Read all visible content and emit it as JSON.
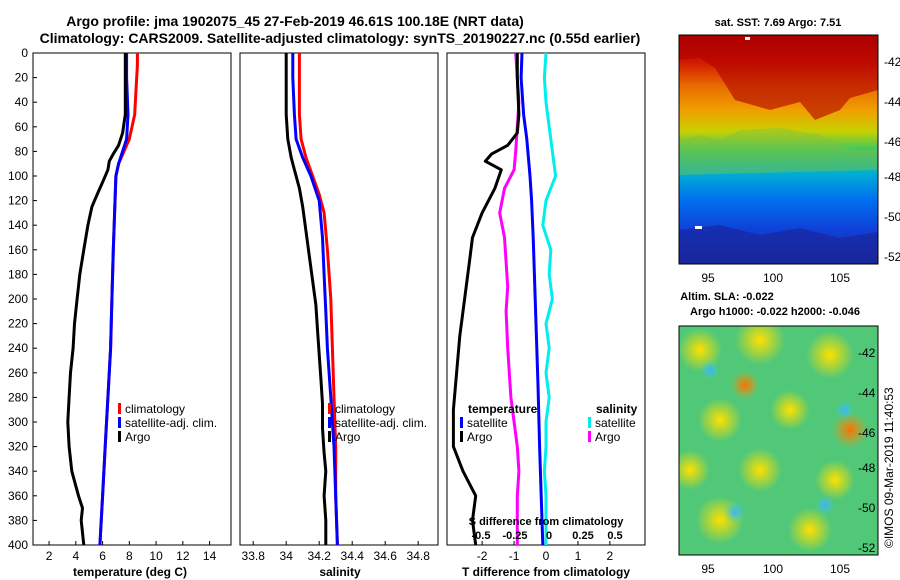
{
  "header": {
    "line1": "Argo profile: jma 1902075_45 27-Feb-2019 46.61S 100.18E (NRT data)",
    "line2": "Climatology: CARS2009. Satellite-adjusted climatology: synTS_20190227.nc (0.55d earlier)"
  },
  "colors": {
    "clim": "#ff0000",
    "sat": "#0000ff",
    "argo": "#000000",
    "sat_sal": "#00eeee",
    "argo_sal": "#ff00ff"
  },
  "chart_data": [
    {
      "type": "line",
      "id": "temperature",
      "xlabel": "temperature (deg C)",
      "xlim": [
        0.8,
        15.6
      ],
      "xticks": [
        2,
        4,
        6,
        8,
        10,
        12,
        14
      ],
      "ylim": [
        0,
        400
      ],
      "yticks": [
        0,
        20,
        40,
        60,
        80,
        100,
        120,
        140,
        160,
        180,
        200,
        220,
        240,
        260,
        280,
        300,
        320,
        340,
        360,
        380,
        400
      ],
      "legend": [
        "climatology",
        "satellite-adj. clim.",
        "Argo"
      ],
      "series": [
        {
          "name": "climatology",
          "color": "clim",
          "points": [
            [
              8.6,
              0
            ],
            [
              8.6,
              10
            ],
            [
              8.5,
              30
            ],
            [
              8.4,
              50
            ],
            [
              8.0,
              70
            ],
            [
              7.6,
              80
            ],
            [
              7.2,
              90
            ],
            [
              7.0,
              100
            ],
            [
              6.9,
              130
            ],
            [
              6.8,
              160
            ],
            [
              6.7,
              200
            ],
            [
              6.6,
              240
            ],
            [
              6.4,
              280
            ],
            [
              6.2,
              320
            ],
            [
              6.0,
              360
            ],
            [
              5.8,
              400
            ]
          ]
        },
        {
          "name": "satellite-adj. clim.",
          "color": "sat",
          "points": [
            [
              7.8,
              0
            ],
            [
              7.8,
              20
            ],
            [
              7.9,
              50
            ],
            [
              7.8,
              70
            ],
            [
              7.5,
              80
            ],
            [
              7.2,
              90
            ],
            [
              7.0,
              100
            ],
            [
              6.9,
              130
            ],
            [
              6.8,
              160
            ],
            [
              6.7,
              200
            ],
            [
              6.6,
              240
            ],
            [
              6.4,
              280
            ],
            [
              6.2,
              320
            ],
            [
              6.0,
              360
            ],
            [
              5.8,
              400
            ]
          ]
        },
        {
          "name": "Argo",
          "color": "argo",
          "points": [
            [
              7.7,
              0
            ],
            [
              7.7,
              20
            ],
            [
              7.7,
              50
            ],
            [
              7.5,
              65
            ],
            [
              7.2,
              75
            ],
            [
              6.8,
              82
            ],
            [
              6.5,
              88
            ],
            [
              6.4,
              95
            ],
            [
              6.0,
              105
            ],
            [
              5.6,
              115
            ],
            [
              5.2,
              125
            ],
            [
              4.9,
              140
            ],
            [
              4.6,
              160
            ],
            [
              4.3,
              180
            ],
            [
              4.1,
              200
            ],
            [
              3.9,
              220
            ],
            [
              3.8,
              240
            ],
            [
              3.6,
              260
            ],
            [
              3.5,
              280
            ],
            [
              3.4,
              300
            ],
            [
              3.5,
              320
            ],
            [
              3.7,
              340
            ],
            [
              4.2,
              360
            ],
            [
              4.5,
              370
            ],
            [
              4.4,
              380
            ],
            [
              4.5,
              390
            ],
            [
              4.6,
              400
            ]
          ]
        }
      ]
    },
    {
      "type": "line",
      "id": "salinity",
      "xlabel": "salinity",
      "xlim": [
        33.72,
        34.92
      ],
      "xticks": [
        "33.8",
        "34",
        "34.2",
        "34.4",
        "34.6",
        "34.8"
      ],
      "ylim": [
        0,
        400
      ],
      "legend": [
        "climatology",
        "satellite-adj. clim.",
        "Argo"
      ],
      "series": [
        {
          "name": "climatology",
          "color": "clim",
          "points": [
            [
              34.08,
              0
            ],
            [
              34.08,
              20
            ],
            [
              34.08,
              50
            ],
            [
              34.09,
              70
            ],
            [
              34.12,
              85
            ],
            [
              34.16,
              100
            ],
            [
              34.2,
              115
            ],
            [
              34.23,
              130
            ],
            [
              34.25,
              160
            ],
            [
              34.27,
              200
            ],
            [
              34.28,
              240
            ],
            [
              34.29,
              280
            ],
            [
              34.3,
              320
            ],
            [
              34.3,
              360
            ],
            [
              34.31,
              400
            ]
          ]
        },
        {
          "name": "satellite-adj. clim.",
          "color": "sat",
          "points": [
            [
              34.04,
              0
            ],
            [
              34.04,
              20
            ],
            [
              34.05,
              50
            ],
            [
              34.06,
              70
            ],
            [
              34.1,
              85
            ],
            [
              34.15,
              100
            ],
            [
              34.2,
              120
            ],
            [
              34.22,
              150
            ],
            [
              34.23,
              180
            ],
            [
              34.24,
              210
            ],
            [
              34.25,
              240
            ],
            [
              34.27,
              280
            ],
            [
              34.29,
              320
            ],
            [
              34.3,
              360
            ],
            [
              34.31,
              400
            ]
          ]
        },
        {
          "name": "Argo",
          "color": "argo",
          "points": [
            [
              34.0,
              0
            ],
            [
              34.0,
              20
            ],
            [
              34.0,
              50
            ],
            [
              34.01,
              70
            ],
            [
              34.03,
              85
            ],
            [
              34.05,
              95
            ],
            [
              34.08,
              110
            ],
            [
              34.1,
              125
            ],
            [
              34.12,
              145
            ],
            [
              34.14,
              165
            ],
            [
              34.16,
              185
            ],
            [
              34.18,
              205
            ],
            [
              34.19,
              225
            ],
            [
              34.2,
              245
            ],
            [
              34.21,
              265
            ],
            [
              34.22,
              285
            ],
            [
              34.22,
              305
            ],
            [
              34.23,
              325
            ],
            [
              34.24,
              340
            ],
            [
              34.23,
              360
            ],
            [
              34.24,
              380
            ],
            [
              34.24,
              400
            ]
          ]
        }
      ]
    },
    {
      "type": "line",
      "id": "difference",
      "xlabel": "T difference from climatology",
      "xlim": [
        -3.1,
        3.1
      ],
      "xticks": [
        "-2",
        "-1",
        "0",
        "1",
        "2"
      ],
      "top_label": "S difference from climatology",
      "top_ticks": [
        "-0.5",
        "-0.25",
        "0",
        "0.25",
        "0.5"
      ],
      "ylim": [
        0,
        400
      ],
      "legend_left_title": "temperature",
      "legend_left": [
        "satellite",
        "Argo"
      ],
      "legend_right_title": "salinity",
      "legend_right": [
        "satellite",
        "Argo"
      ],
      "series": [
        {
          "name": "T satellite",
          "color": "sat",
          "points": [
            [
              -0.75,
              0
            ],
            [
              -0.78,
              20
            ],
            [
              -0.7,
              50
            ],
            [
              -0.6,
              70
            ],
            [
              -0.55,
              85
            ],
            [
              -0.5,
              100
            ],
            [
              -0.45,
              120
            ],
            [
              -0.4,
              150
            ],
            [
              -0.35,
              190
            ],
            [
              -0.3,
              230
            ],
            [
              -0.25,
              270
            ],
            [
              -0.2,
              320
            ],
            [
              -0.15,
              360
            ],
            [
              -0.1,
              400
            ]
          ]
        },
        {
          "name": "S satellite",
          "color": "sat_sal",
          "points": [
            [
              0.0,
              0
            ],
            [
              -0.05,
              20
            ],
            [
              0.0,
              40
            ],
            [
              0.1,
              60
            ],
            [
              0.2,
              80
            ],
            [
              0.3,
              100
            ],
            [
              0.0,
              120
            ],
            [
              -0.1,
              140
            ],
            [
              0.15,
              160
            ],
            [
              0.1,
              180
            ],
            [
              0.2,
              200
            ],
            [
              0.0,
              220
            ],
            [
              0.1,
              240
            ],
            [
              0.0,
              260
            ],
            [
              0.1,
              280
            ],
            [
              0.0,
              300
            ],
            [
              0.0,
              320
            ],
            [
              -0.05,
              340
            ],
            [
              0.0,
              360
            ],
            [
              0.0,
              380
            ],
            [
              0.0,
              400
            ]
          ]
        },
        {
          "name": "S Argo",
          "color": "argo_sal",
          "points": [
            [
              -0.95,
              0
            ],
            [
              -0.9,
              20
            ],
            [
              -0.85,
              40
            ],
            [
              -0.9,
              60
            ],
            [
              -0.95,
              80
            ],
            [
              -1.0,
              95
            ],
            [
              -1.3,
              110
            ],
            [
              -1.45,
              130
            ],
            [
              -1.3,
              150
            ],
            [
              -1.25,
              170
            ],
            [
              -1.2,
              190
            ],
            [
              -1.25,
              210
            ],
            [
              -1.2,
              240
            ],
            [
              -1.15,
              260
            ],
            [
              -1.1,
              280
            ],
            [
              -1.0,
              300
            ],
            [
              -0.9,
              320
            ],
            [
              -0.85,
              340
            ],
            [
              -0.9,
              360
            ],
            [
              -0.9,
              380
            ],
            [
              -0.9,
              400
            ]
          ]
        },
        {
          "name": "T Argo",
          "color": "argo",
          "points": [
            [
              -0.9,
              0
            ],
            [
              -0.9,
              20
            ],
            [
              -0.85,
              50
            ],
            [
              -0.9,
              65
            ],
            [
              -1.2,
              75
            ],
            [
              -1.7,
              82
            ],
            [
              -1.9,
              88
            ],
            [
              -1.4,
              95
            ],
            [
              -1.6,
              110
            ],
            [
              -2.0,
              130
            ],
            [
              -2.3,
              150
            ],
            [
              -2.4,
              170
            ],
            [
              -2.5,
              190
            ],
            [
              -2.6,
              210
            ],
            [
              -2.7,
              230
            ],
            [
              -2.8,
              260
            ],
            [
              -2.9,
              290
            ],
            [
              -2.9,
              320
            ],
            [
              -2.6,
              340
            ],
            [
              -2.2,
              360
            ],
            [
              -2.3,
              380
            ],
            [
              -2.2,
              400
            ]
          ]
        }
      ]
    }
  ],
  "sst_map": {
    "title": "sat. SST: 7.69 Argo: 7.51",
    "yticks": [
      "-42",
      "-44",
      "-46",
      "-48",
      "-50",
      "-52"
    ],
    "xticks": [
      "95",
      "100",
      "105"
    ]
  },
  "sla_map": {
    "title1": "Altim. SLA: -0.022",
    "title2": "Argo h1000: -0.022 h2000: -0.046",
    "yticks": [
      "-42",
      "-44",
      "-46",
      "-48",
      "-50",
      "-52"
    ],
    "xticks": [
      "95",
      "100",
      "105"
    ]
  },
  "credit": "©IMOS 09-Mar-2019 11:40:53"
}
